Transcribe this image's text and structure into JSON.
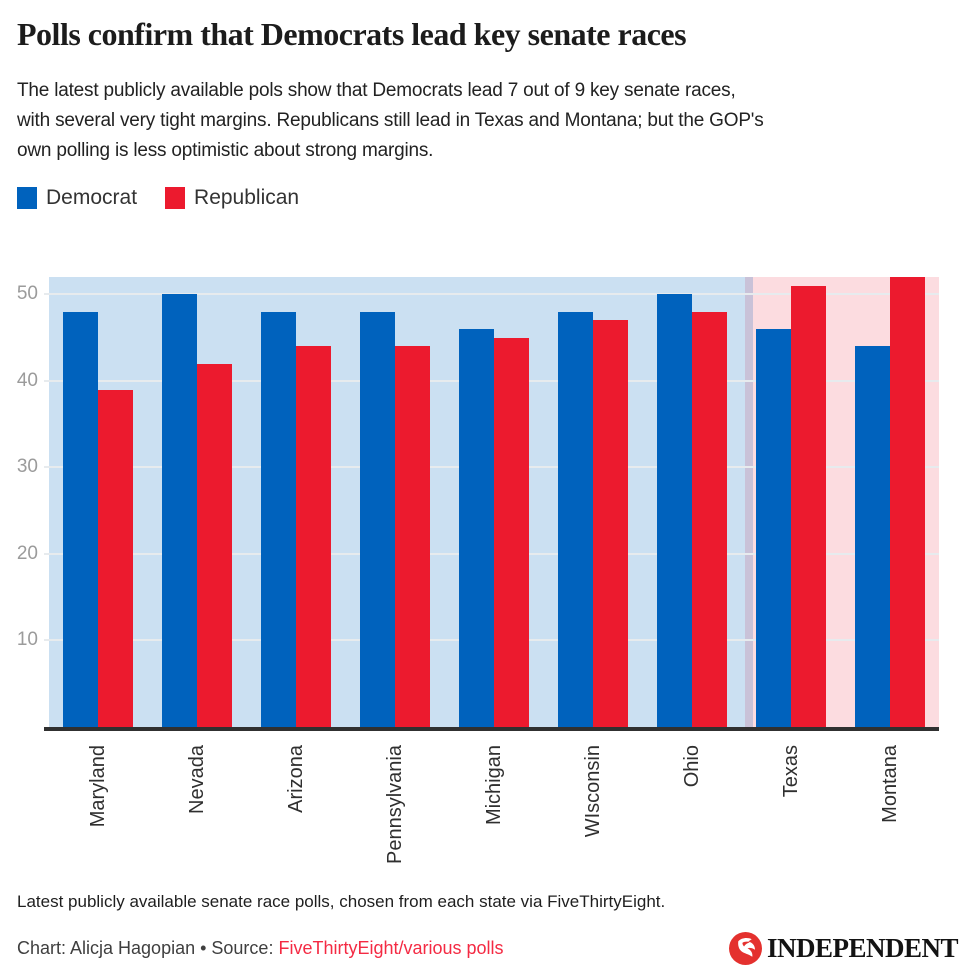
{
  "chart_data": {
    "type": "bar",
    "title": "Polls confirm that Democrats lead key senate races",
    "subtitle": "The latest publicly available pols show that Democrats lead 7 out of 9 key senate races,\nwith several very tight margins. Republicans still lead in Texas and Montana; but the GOP's\nown polling is less optimistic about strong margins.",
    "categories": [
      "Maryland",
      "Nevada",
      "Arizona",
      "Pennsylvania",
      "Michigan",
      "WIsconsin",
      "Ohio",
      "Texas",
      "Montana"
    ],
    "series": [
      {
        "name": "Democrat",
        "color": "#0062bd",
        "values": [
          48,
          50,
          48,
          48,
          46,
          48,
          50,
          46,
          44
        ]
      },
      {
        "name": "Republican",
        "color": "#ec1a2e",
        "values": [
          39,
          42,
          44,
          44,
          45,
          47,
          48,
          51,
          52
        ]
      }
    ],
    "xlabel": "",
    "ylabel": "",
    "ylim": [
      0,
      52
    ],
    "yticks": [
      10,
      20,
      30,
      40,
      50
    ],
    "grid": true,
    "legend_position": "top",
    "background_bands": [
      {
        "label": "dem-leading-states",
        "from_category": 0,
        "to_category": 6,
        "color": "#cbe0f2"
      },
      {
        "label": "rep-leading-states",
        "from_category": 7,
        "to_category": 8,
        "color": "#fcdce0"
      }
    ],
    "divider_color": "#c9c2d8",
    "axis_line_color": "#303030",
    "tick_label_color": "#9b9b9b"
  },
  "footer": {
    "note": "Latest publicly available senate race polls, chosen from each state via FiveThirtyEight.",
    "credit_prefix": "Chart: Alicja Hagopian • Source: ",
    "source_link": "FiveThirtyEight/various polls",
    "source_color": "#f42a43",
    "brand": {
      "name": "INDEPENDENT",
      "icon": "independent-eagle-icon",
      "circle_color": "#e4312e"
    }
  }
}
